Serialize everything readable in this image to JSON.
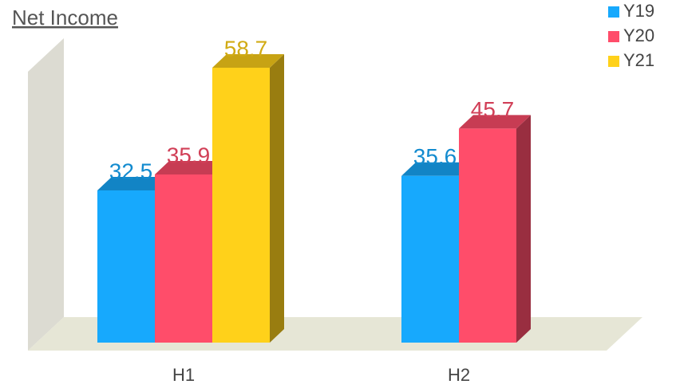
{
  "chart_data": {
    "type": "bar3d",
    "title": "Net Income",
    "categories": [
      "H1",
      "H2"
    ],
    "series": [
      {
        "name": "Y19",
        "color": "#17a9fd",
        "values": [
          32.5,
          35.6
        ]
      },
      {
        "name": "Y20",
        "color": "#ff4d6a",
        "values": [
          35.9,
          45.7
        ]
      },
      {
        "name": "Y21",
        "color": "#ffd11a",
        "values": [
          58.7,
          null
        ]
      }
    ],
    "data_labels": true,
    "legend": "top-right"
  }
}
